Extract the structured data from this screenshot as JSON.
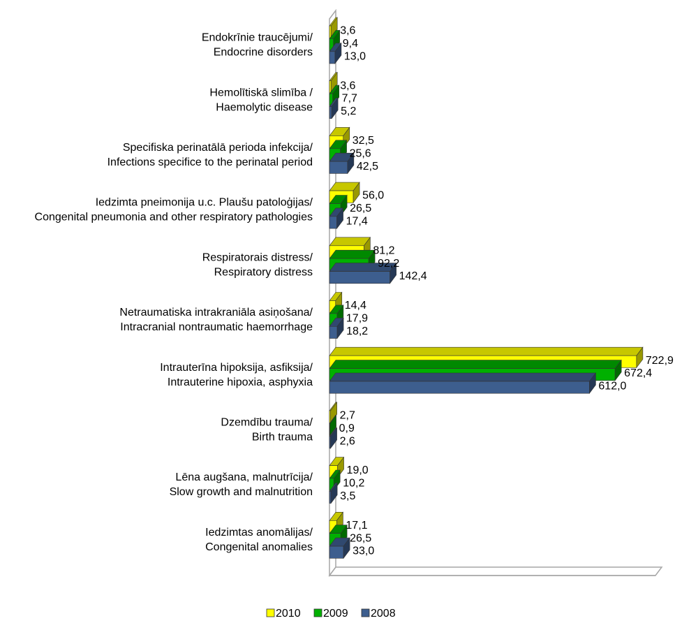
{
  "chart_data": {
    "type": "bar",
    "orientation": "horizontal",
    "three_d": true,
    "decimal_separator": ",",
    "categories": [
      [
        "Endokrīnie traucējumi/",
        "Endocrine disorders"
      ],
      [
        "Hemolītiskā slimība /",
        "Haemolytic disease"
      ],
      [
        "Specifiska perinatālā perioda infekcija/",
        "Infections specifice to the perinatal period"
      ],
      [
        "Iedzimta pneimonija u.c. Plaušu patoloģijas/",
        "Congenital pneumonia and other respiratory pathologies"
      ],
      [
        "Respiratorais distress/",
        "Respiratory distress"
      ],
      [
        "Netraumatiska intrakraniāla asiņošana/",
        "Intracranial nontraumatic haemorrhage"
      ],
      [
        "Intrauterīna hipoksija, asfiksija/",
        "Intrauterine hipoxia, asphyxia"
      ],
      [
        "Dzemdību trauma/",
        "Birth trauma"
      ],
      [
        "Lēna augšana, malnutrīcija/",
        "Slow growth and malnutrition"
      ],
      [
        "Iedzimtas anomālijas/",
        "Congenital anomalies"
      ]
    ],
    "series": [
      {
        "name": "2010",
        "color": "#FFFF00",
        "values": [
          3.6,
          3.6,
          32.5,
          56.0,
          81.2,
          14.4,
          722.9,
          2.7,
          19.0,
          17.1
        ]
      },
      {
        "name": "2009",
        "color": "#00B000",
        "values": [
          9.4,
          7.7,
          25.6,
          26.5,
          92.2,
          17.9,
          672.4,
          0.9,
          10.2,
          26.5
        ]
      },
      {
        "name": "2008",
        "color": "#3D5E8E",
        "values": [
          13.0,
          5.2,
          42.5,
          17.4,
          142.4,
          18.2,
          612.0,
          2.6,
          3.5,
          33.0
        ]
      }
    ],
    "xlim": [
      0,
      750
    ],
    "legend_position": "bottom",
    "grid": false
  }
}
